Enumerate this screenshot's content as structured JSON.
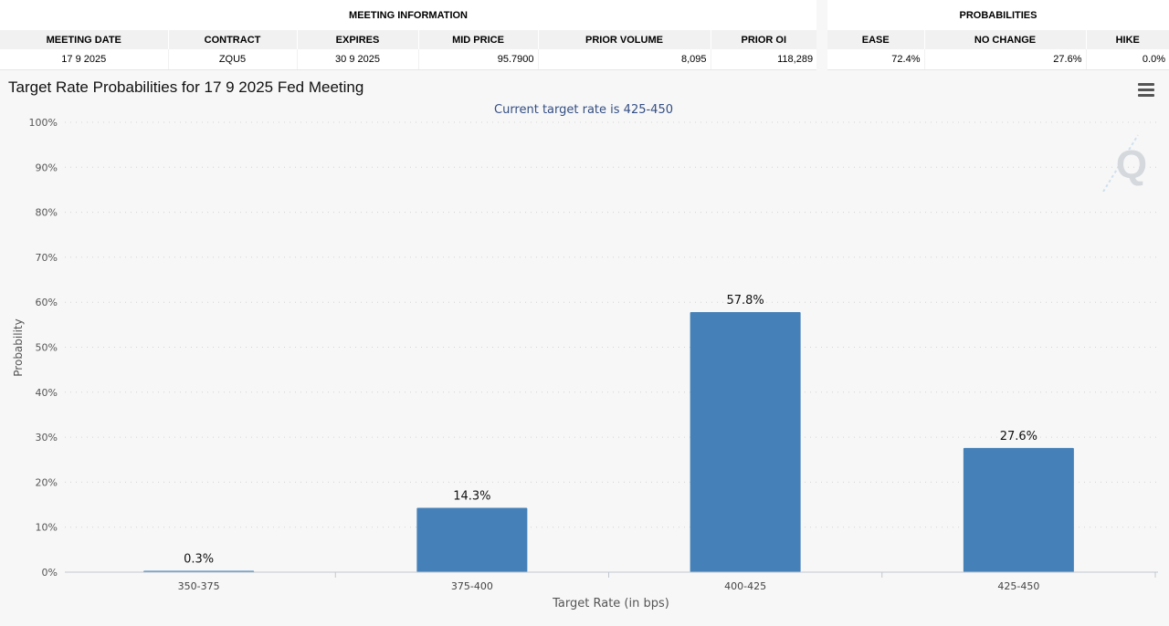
{
  "meeting_info": {
    "group_label": "MEETING INFORMATION",
    "headers": [
      "MEETING DATE",
      "CONTRACT",
      "EXPIRES",
      "MID PRICE",
      "PRIOR VOLUME",
      "PRIOR OI"
    ],
    "values": [
      "17 9 2025",
      "ZQU5",
      "30 9 2025",
      "95.7900",
      "8,095",
      "118,289"
    ]
  },
  "probabilities": {
    "group_label": "PROBABILITIES",
    "headers": [
      "EASE",
      "NO CHANGE",
      "HIKE"
    ],
    "values": [
      "72.4%",
      "27.6%",
      "0.0%"
    ]
  },
  "menu_icon": "hamburger-menu-icon",
  "watermark_letter": "Q",
  "chart_data": {
    "type": "bar",
    "title": "Target Rate Probabilities for 17 9 2025 Fed Meeting",
    "subtitle": "Current target rate is 425-450",
    "xlabel": "Target Rate (in bps)",
    "ylabel": "Probability",
    "categories": [
      "350-375",
      "375-400",
      "400-425",
      "425-450"
    ],
    "values": [
      0.3,
      14.3,
      57.8,
      27.6
    ],
    "data_labels": [
      "0.3%",
      "14.3%",
      "57.8%",
      "27.6%"
    ],
    "ylim": [
      0,
      100
    ],
    "yticks": [
      0,
      10,
      20,
      30,
      40,
      50,
      60,
      70,
      80,
      90,
      100
    ],
    "ytick_suffix": "%",
    "grid": true,
    "bar_color": "#4581b8",
    "subtitle_color": "#334e83"
  }
}
